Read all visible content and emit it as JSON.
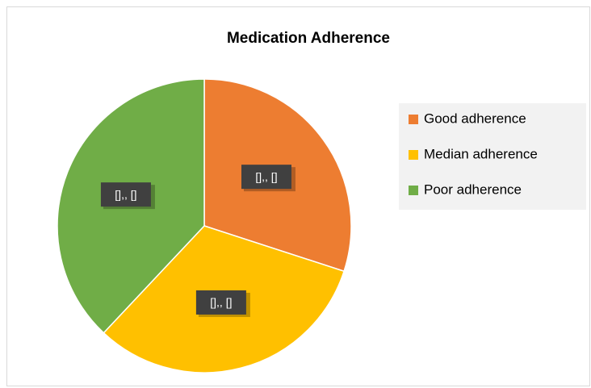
{
  "chart_data": {
    "type": "pie",
    "title": "Medication Adherence",
    "categories": [
      "Good adherence",
      "Median adherence",
      "Poor adherence"
    ],
    "values": [
      30,
      32,
      38
    ],
    "value_labels": [
      "[],, []",
      "[],, []",
      "[],, []"
    ],
    "colors": [
      "#ed7d31",
      "#ffc000",
      "#70ad47"
    ],
    "legend": "right"
  }
}
